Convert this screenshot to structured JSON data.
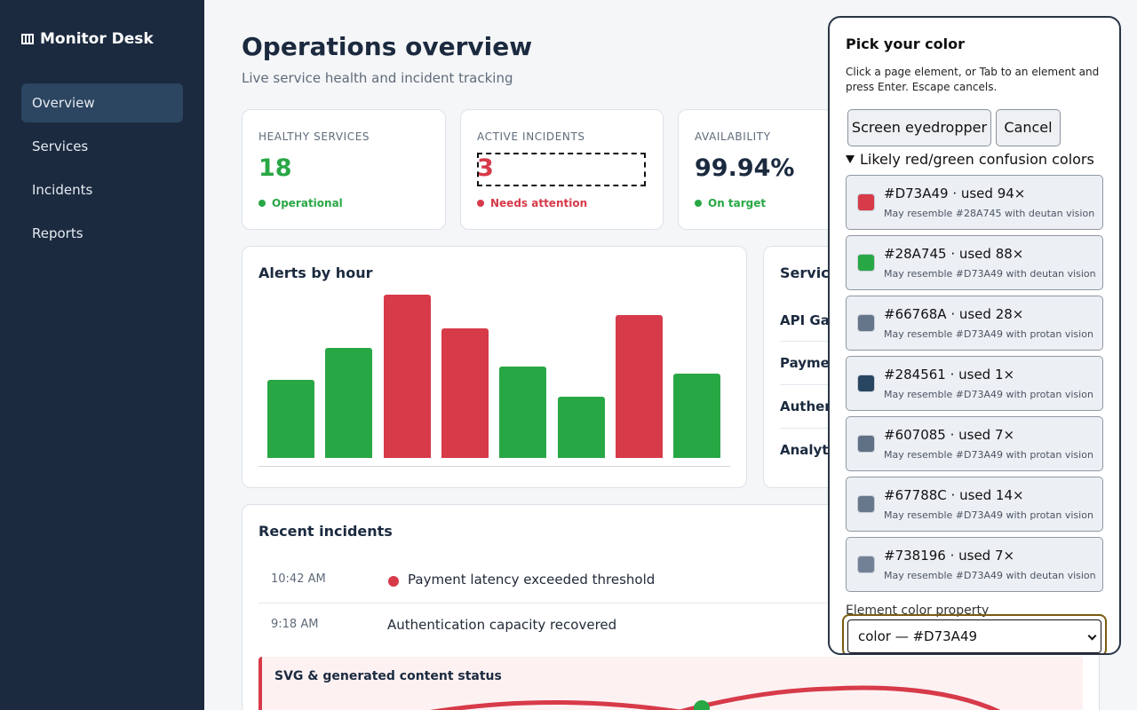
{
  "colors": {
    "red": "#D73A49",
    "green": "#28A745",
    "sidebar_bg": "#1b2a3f",
    "nav_active": "#2c4560"
  },
  "sidebar": {
    "brand": "Monitor Desk",
    "items": [
      {
        "label": "Overview",
        "active": true
      },
      {
        "label": "Services"
      },
      {
        "label": "Incidents"
      },
      {
        "label": "Reports"
      }
    ]
  },
  "header": {
    "title": "Operations overview",
    "subtitle": "Live service health and incident tracking"
  },
  "stats": [
    {
      "label": "HEALTHY SERVICES",
      "value": "18",
      "status": "Operational",
      "color": "#28A745"
    },
    {
      "label": "ACTIVE INCIDENTS",
      "value": "3",
      "status": "Needs attention",
      "color": "#D73A49"
    },
    {
      "label": "AVAILABILITY",
      "value": "99.94%",
      "status": "On target",
      "color": "#28A745"
    }
  ],
  "alerts_chart": {
    "title": "Alerts by hour"
  },
  "chart_data": {
    "type": "bar",
    "title": "Alerts by hour",
    "values": [
      6.4,
      9.0,
      13.4,
      10.6,
      7.5,
      5.0,
      11.7,
      6.9
    ],
    "colors": [
      "#28A745",
      "#28A745",
      "#D73A49",
      "#D73A49",
      "#28A745",
      "#28A745",
      "#D73A49",
      "#28A745"
    ],
    "ylim": [
      0,
      16
    ],
    "grid": false,
    "xlabel": "",
    "ylabel": ""
  },
  "services_card": {
    "title": "Service",
    "items": [
      "API Gat",
      "Paymen",
      "Authent",
      "Analytic"
    ]
  },
  "incidents": {
    "title": "Recent incidents",
    "rows": [
      {
        "time": "10:42 AM",
        "text": "Payment latency exceeded threshold",
        "dot_color": "#D73A49"
      },
      {
        "time": "9:18 AM",
        "text": "Authentication capacity recovered"
      }
    ],
    "svg_status_title": "SVG & generated content status"
  },
  "picker": {
    "title": "Pick your color",
    "help": "Click a page element, or Tab to an element and press Enter. Escape cancels.",
    "eyedropper_label": "Screen eyedropper",
    "cancel_label": "Cancel",
    "details_summary": "Likely red/green confusion colors",
    "colors": [
      {
        "hex": "#D73A49",
        "main": "#D73A49 · used 94×",
        "note": "May resemble #28A745 with deutan vision"
      },
      {
        "hex": "#28A745",
        "main": "#28A745 · used 88×",
        "note": "May resemble #D73A49 with deutan vision"
      },
      {
        "hex": "#66768A",
        "main": "#66768A · used 28×",
        "note": "May resemble #D73A49 with protan vision"
      },
      {
        "hex": "#284561",
        "main": "#284561 · used 1×",
        "note": "May resemble #D73A49 with protan vision"
      },
      {
        "hex": "#607085",
        "main": "#607085 · used 7×",
        "note": "May resemble #D73A49 with protan vision"
      },
      {
        "hex": "#67788C",
        "main": "#67788C · used 14×",
        "note": "May resemble #D73A49 with protan vision"
      },
      {
        "hex": "#738196",
        "main": "#738196 · used 7×",
        "note": "May resemble #D73A49 with deutan vision"
      }
    ],
    "property_label": "Element color property",
    "property_value": "color — #D73A49"
  }
}
